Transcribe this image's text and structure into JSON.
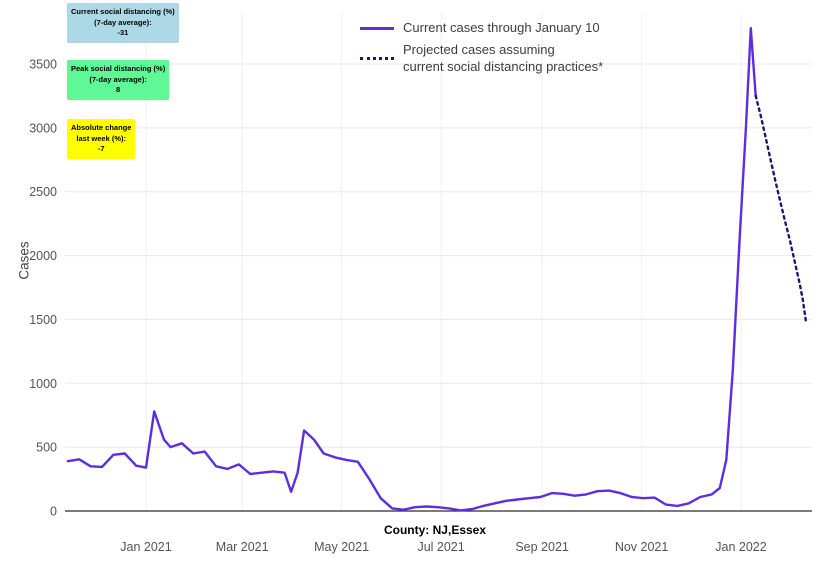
{
  "annotations": {
    "current_social_distancing": {
      "line1": "Current social distancing (%)",
      "line2": "(7-day average):",
      "value": "-31",
      "bg_color": "#add8e6"
    },
    "peak_social_distancing": {
      "line1": "Peak social distancing (%)",
      "line2": "(7-day average):",
      "value": "8",
      "bg_color": "#5ef996"
    },
    "absolute_change": {
      "line1": "Absolute change",
      "line2": "last week (%):",
      "value": "-7",
      "bg_color": "#ffff00"
    }
  },
  "legend": {
    "current_cases_label": "Current cases through January 10",
    "projected_cases_label_line1": "Projected cases assuming",
    "projected_cases_label_line2": "current social distancing practices*"
  },
  "chart_data": {
    "type": "line",
    "title": "",
    "xlabel": "County: NJ,Essex",
    "ylabel": "Cases",
    "ylim": [
      0,
      3900
    ],
    "yticks": [
      0,
      500,
      1000,
      1500,
      2000,
      2500,
      3000,
      3500
    ],
    "xticks": [
      {
        "date": "2021-01-01",
        "label": "Jan 2021"
      },
      {
        "date": "2021-03-01",
        "label": "Mar 2021"
      },
      {
        "date": "2021-05-01",
        "label": "May 2021"
      },
      {
        "date": "2021-07-01",
        "label": "Jul 2021"
      },
      {
        "date": "2021-09-01",
        "label": "Sep 2021"
      },
      {
        "date": "2021-11-01",
        "label": "Nov 2021"
      },
      {
        "date": "2022-01-01",
        "label": "Jan 2022"
      }
    ],
    "grid": true,
    "legend_position": "top-center",
    "series": [
      {
        "name": "Current cases through January 10",
        "style": "solid",
        "color": "#5b2ee0",
        "points": [
          [
            "2020-11-14",
            390
          ],
          [
            "2020-11-21",
            405
          ],
          [
            "2020-11-28",
            350
          ],
          [
            "2020-12-05",
            345
          ],
          [
            "2020-12-12",
            440
          ],
          [
            "2020-12-19",
            450
          ],
          [
            "2020-12-26",
            355
          ],
          [
            "2021-01-01",
            340
          ],
          [
            "2021-01-06",
            780
          ],
          [
            "2021-01-12",
            560
          ],
          [
            "2021-01-16",
            500
          ],
          [
            "2021-01-23",
            530
          ],
          [
            "2021-01-30",
            450
          ],
          [
            "2021-02-06",
            465
          ],
          [
            "2021-02-13",
            350
          ],
          [
            "2021-02-20",
            330
          ],
          [
            "2021-02-27",
            365
          ],
          [
            "2021-03-06",
            290
          ],
          [
            "2021-03-13",
            300
          ],
          [
            "2021-03-20",
            310
          ],
          [
            "2021-03-27",
            300
          ],
          [
            "2021-03-31",
            150
          ],
          [
            "2021-04-04",
            300
          ],
          [
            "2021-04-08",
            630
          ],
          [
            "2021-04-14",
            560
          ],
          [
            "2021-04-20",
            450
          ],
          [
            "2021-04-27",
            420
          ],
          [
            "2021-05-04",
            400
          ],
          [
            "2021-05-11",
            385
          ],
          [
            "2021-05-18",
            250
          ],
          [
            "2021-05-25",
            100
          ],
          [
            "2021-06-01",
            20
          ],
          [
            "2021-06-08",
            10
          ],
          [
            "2021-06-15",
            30
          ],
          [
            "2021-06-22",
            35
          ],
          [
            "2021-06-29",
            30
          ],
          [
            "2021-07-06",
            20
          ],
          [
            "2021-07-13",
            5
          ],
          [
            "2021-07-20",
            15
          ],
          [
            "2021-07-27",
            40
          ],
          [
            "2021-08-03",
            60
          ],
          [
            "2021-08-10",
            80
          ],
          [
            "2021-08-17",
            90
          ],
          [
            "2021-08-24",
            100
          ],
          [
            "2021-08-31",
            110
          ],
          [
            "2021-09-07",
            140
          ],
          [
            "2021-09-14",
            135
          ],
          [
            "2021-09-21",
            120
          ],
          [
            "2021-09-28",
            130
          ],
          [
            "2021-10-05",
            155
          ],
          [
            "2021-10-12",
            160
          ],
          [
            "2021-10-19",
            140
          ],
          [
            "2021-10-26",
            110
          ],
          [
            "2021-11-02",
            100
          ],
          [
            "2021-11-09",
            105
          ],
          [
            "2021-11-16",
            50
          ],
          [
            "2021-11-23",
            40
          ],
          [
            "2021-11-30",
            60
          ],
          [
            "2021-12-07",
            110
          ],
          [
            "2021-12-14",
            130
          ],
          [
            "2021-12-19",
            180
          ],
          [
            "2021-12-23",
            400
          ],
          [
            "2021-12-27",
            1100
          ],
          [
            "2021-12-31",
            2100
          ],
          [
            "2022-01-04",
            3000
          ],
          [
            "2022-01-07",
            3780
          ],
          [
            "2022-01-10",
            3250
          ]
        ]
      },
      {
        "name": "Projected cases assuming current social distancing practices*",
        "style": "dotted",
        "color": "#191970",
        "points": [
          [
            "2022-01-10",
            3250
          ],
          [
            "2022-01-13",
            3100
          ],
          [
            "2022-01-16",
            2930
          ],
          [
            "2022-01-19",
            2760
          ],
          [
            "2022-01-22",
            2590
          ],
          [
            "2022-01-25",
            2430
          ],
          [
            "2022-01-28",
            2270
          ],
          [
            "2022-01-31",
            2120
          ],
          [
            "2022-02-03",
            1950
          ],
          [
            "2022-02-06",
            1780
          ],
          [
            "2022-02-08",
            1650
          ],
          [
            "2022-02-10",
            1470
          ]
        ]
      }
    ]
  }
}
